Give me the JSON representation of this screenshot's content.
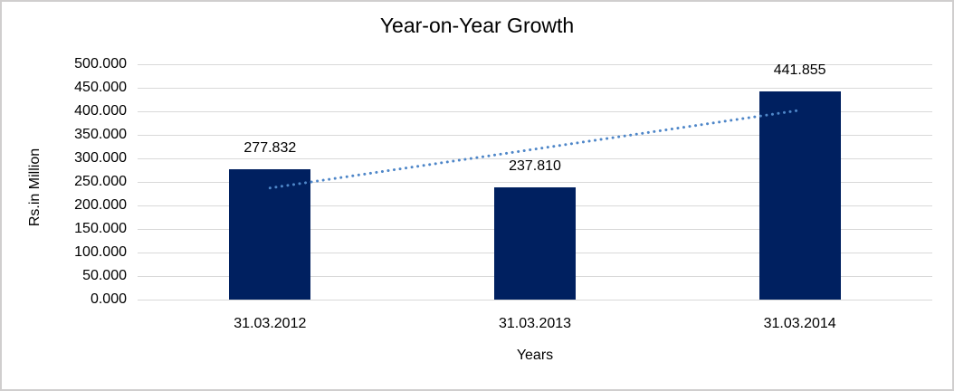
{
  "chart_data": {
    "type": "bar",
    "title": "Year-on-Year Growth",
    "xlabel": "Years",
    "ylabel": "Rs.in Million",
    "categories": [
      "31.03.2012",
      "31.03.2013",
      "31.03.2014"
    ],
    "values": [
      277.832,
      237.81,
      441.855
    ],
    "data_labels": [
      "277.832",
      "237.810",
      "441.855"
    ],
    "y_tick_labels": [
      "500.000",
      "450.000",
      "400.000",
      "350.000",
      "300.000",
      "250.000",
      "200.000",
      "150.000",
      "100.000",
      "50.000",
      "0.000"
    ],
    "ylim": [
      0,
      500
    ],
    "ytick_step": 50,
    "ytick_decimals": 3,
    "grid": true,
    "legend": false,
    "trendline": {
      "type": "linear",
      "style": "dotted",
      "color": "#4e86c8",
      "start_value": 237.155,
      "end_value": 401.177
    },
    "colors": {
      "bar": "#002060",
      "gridline": "#d9d9d9",
      "text": "#000000",
      "border": "#d0cece",
      "background": "#ffffff"
    }
  }
}
